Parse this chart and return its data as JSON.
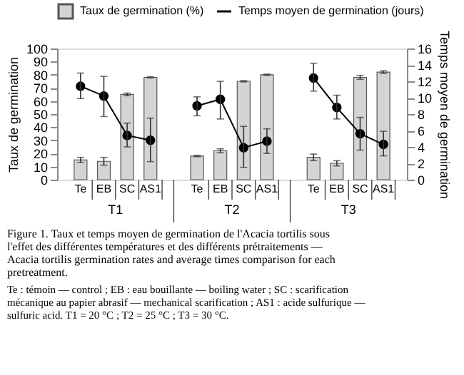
{
  "chart_data": {
    "type": "bar",
    "title": "Figure 1. Taux et temps moyen de germination de l'Acacia tortilis sous l'effet des différentes températures et des différents prétraitements — Acacia tortilis germination rates and average times comparison for each pretreatment.",
    "ylabel": "Taux de germination",
    "y2label": "Temps moyen de germination",
    "categories": [
      "Te",
      "EB",
      "SC",
      "AS1",
      "Te",
      "EB",
      "SC",
      "AS1",
      "Te",
      "EB",
      "SC",
      "AS1"
    ],
    "annotations": [
      "T1",
      "T2",
      "T3",
      "Te : témoin — control ; EB : eau bouillante — boiling water ; SC : scarification mécanique au papier abrasif — mechanical scarification ; AS1 : acide sulfurique — sulfuric acid. T1 = 20 °C ; T2 = 25 °C ; T3 = 30 °C."
    ],
    "series": [
      {
        "name": "Taux de germination (%)",
        "color": "#d4d4d4",
        "values": [
          15,
          14,
          65,
          78,
          18,
          22,
          75,
          80,
          17,
          12.5,
          78,
          82
        ],
        "errors": [
          2,
          3,
          1,
          0.5,
          0.5,
          1.5,
          0.5,
          0.5,
          2.5,
          2,
          1.5,
          1
        ]
      },
      {
        "name": "Temps moyen de germination (jours)",
        "type": "line",
        "axis": "y2",
        "color": "#000000",
        "marker": "circle",
        "values": [
          11.4,
          10.2,
          5.4,
          4.8,
          9.0,
          9.8,
          3.9,
          4.7,
          12.4,
          8.8,
          5.6,
          4.3
        ],
        "errors": [
          [
            9.9,
            13.0
          ],
          [
            7.7,
            12.6
          ],
          [
            4.0,
            6.9
          ],
          [
            2.2,
            7.5
          ],
          [
            7.8,
            10.1
          ],
          [
            7.4,
            12.0
          ],
          [
            1.5,
            6.5
          ],
          [
            3.2,
            6.2
          ],
          [
            10.8,
            14.2
          ],
          [
            7.4,
            10.3
          ],
          [
            3.6,
            7.6
          ],
          [
            2.9,
            5.9
          ]
        ]
      }
    ],
    "ylim": [
      0,
      100
    ],
    "yticks": [
      0,
      10,
      20,
      30,
      40,
      50,
      60,
      70,
      80,
      90,
      100
    ],
    "y2lim": [
      0,
      16
    ],
    "y2ticks": [
      0,
      2,
      4,
      6,
      8,
      10,
      12,
      14,
      16
    ],
    "legend": "top",
    "grid": false
  }
}
